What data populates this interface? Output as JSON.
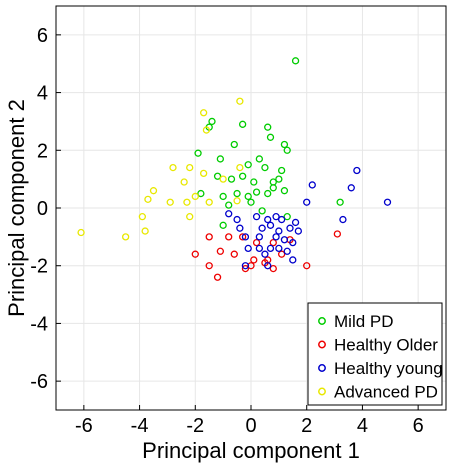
{
  "chart_data": {
    "type": "scatter",
    "xlabel": "Principal component 1",
    "ylabel": "Principal component 2",
    "xlim": [
      -7,
      7
    ],
    "ylim": [
      -7,
      7
    ],
    "xticks": [
      -6,
      -4,
      -2,
      0,
      2,
      4,
      6
    ],
    "yticks": [
      -6,
      -4,
      -2,
      0,
      2,
      4,
      6
    ],
    "xtick_labels": [
      "-6",
      "-4",
      "-2",
      "0",
      "2",
      "4",
      "6"
    ],
    "ytick_labels": [
      "-6",
      "-4",
      "-2",
      "0",
      "2",
      "4",
      "6"
    ],
    "grid": true,
    "legend_position": "bottom-right",
    "marker": "open-circle",
    "series": [
      {
        "name": "Mild PD",
        "color": "#00cc00",
        "points": [
          [
            1.6,
            5.1
          ],
          [
            0.6,
            2.8
          ],
          [
            -0.3,
            2.9
          ],
          [
            -1.4,
            3.0
          ],
          [
            -1.5,
            2.8
          ],
          [
            -0.6,
            2.2
          ],
          [
            0.7,
            2.45
          ],
          [
            1.2,
            2.2
          ],
          [
            1.3,
            2.0
          ],
          [
            -1.9,
            1.9
          ],
          [
            -1.1,
            1.7
          ],
          [
            -0.1,
            1.5
          ],
          [
            0.3,
            1.7
          ],
          [
            0.5,
            1.4
          ],
          [
            1.1,
            1.3
          ],
          [
            -1.2,
            1.1
          ],
          [
            -0.7,
            1.0
          ],
          [
            -0.3,
            1.1
          ],
          [
            0.1,
            0.9
          ],
          [
            0.8,
            0.9
          ],
          [
            1.0,
            1.0
          ],
          [
            -1.8,
            0.5
          ],
          [
            -1.0,
            0.4
          ],
          [
            -0.5,
            0.5
          ],
          [
            -0.1,
            0.4
          ],
          [
            0.2,
            0.55
          ],
          [
            0.6,
            0.5
          ],
          [
            0.8,
            0.7
          ],
          [
            1.2,
            0.6
          ],
          [
            -0.8,
            0.1
          ],
          [
            0.0,
            0.2
          ],
          [
            0.4,
            -0.1
          ],
          [
            1.3,
            -0.3
          ],
          [
            -1.0,
            -0.6
          ],
          [
            3.2,
            0.2
          ]
        ]
      },
      {
        "name": "Healthy Older",
        "color": "#ee0000",
        "points": [
          [
            -1.5,
            -1.0
          ],
          [
            -0.8,
            -1.0
          ],
          [
            -0.3,
            -1.0
          ],
          [
            0.2,
            -1.2
          ],
          [
            0.8,
            -1.2
          ],
          [
            1.4,
            -1.1
          ],
          [
            -2.0,
            -1.6
          ],
          [
            -1.1,
            -1.5
          ],
          [
            -0.6,
            -1.6
          ],
          [
            0.1,
            -1.8
          ],
          [
            0.6,
            -1.8
          ],
          [
            1.1,
            -1.6
          ],
          [
            2.0,
            -2.0
          ],
          [
            -1.5,
            -2.0
          ],
          [
            -0.2,
            -2.1
          ],
          [
            0.0,
            -2.0
          ],
          [
            0.5,
            -1.9
          ],
          [
            -1.2,
            -2.4
          ],
          [
            0.8,
            -2.1
          ],
          [
            3.1,
            -0.9
          ]
        ]
      },
      {
        "name": "Healthy young",
        "color": "#0000cc",
        "points": [
          [
            2.2,
            0.8
          ],
          [
            3.6,
            0.7
          ],
          [
            3.8,
            1.3
          ],
          [
            4.9,
            0.2
          ],
          [
            2.0,
            0.2
          ],
          [
            3.3,
            -0.4
          ],
          [
            -0.8,
            -0.2
          ],
          [
            -0.5,
            -0.4
          ],
          [
            0.2,
            -0.3
          ],
          [
            0.6,
            -0.4
          ],
          [
            0.9,
            -0.3
          ],
          [
            1.1,
            -0.4
          ],
          [
            1.6,
            -0.5
          ],
          [
            -0.4,
            -0.7
          ],
          [
            0.4,
            -0.7
          ],
          [
            0.7,
            -0.6
          ],
          [
            1.0,
            -0.8
          ],
          [
            1.4,
            -0.7
          ],
          [
            1.7,
            -0.8
          ],
          [
            -0.2,
            -1.0
          ],
          [
            0.3,
            -1.0
          ],
          [
            0.9,
            -1.0
          ],
          [
            1.2,
            -1.1
          ],
          [
            1.5,
            -1.2
          ],
          [
            -0.1,
            -1.4
          ],
          [
            0.3,
            -1.4
          ],
          [
            0.7,
            -1.4
          ],
          [
            1.0,
            -1.4
          ],
          [
            1.3,
            -1.5
          ],
          [
            0.5,
            -1.6
          ],
          [
            1.5,
            -1.8
          ],
          [
            0.6,
            -2.0
          ],
          [
            -0.2,
            -2.0
          ]
        ]
      },
      {
        "name": "Advanced PD",
        "color": "#e8e800",
        "points": [
          [
            -0.4,
            3.7
          ],
          [
            -1.7,
            3.3
          ],
          [
            -1.6,
            2.7
          ],
          [
            -2.8,
            1.4
          ],
          [
            -2.2,
            1.4
          ],
          [
            -1.7,
            1.2
          ],
          [
            -1.0,
            1.0
          ],
          [
            -0.4,
            1.4
          ],
          [
            -2.4,
            0.9
          ],
          [
            -2.0,
            0.4
          ],
          [
            -3.5,
            0.6
          ],
          [
            -3.7,
            0.3
          ],
          [
            -2.9,
            0.2
          ],
          [
            -2.3,
            0.2
          ],
          [
            -1.5,
            0.2
          ],
          [
            -0.5,
            0.25
          ],
          [
            -3.9,
            -0.3
          ],
          [
            -2.2,
            -0.3
          ],
          [
            -3.8,
            -0.8
          ],
          [
            -4.5,
            -1.0
          ],
          [
            -6.1,
            -0.85
          ]
        ]
      }
    ]
  }
}
